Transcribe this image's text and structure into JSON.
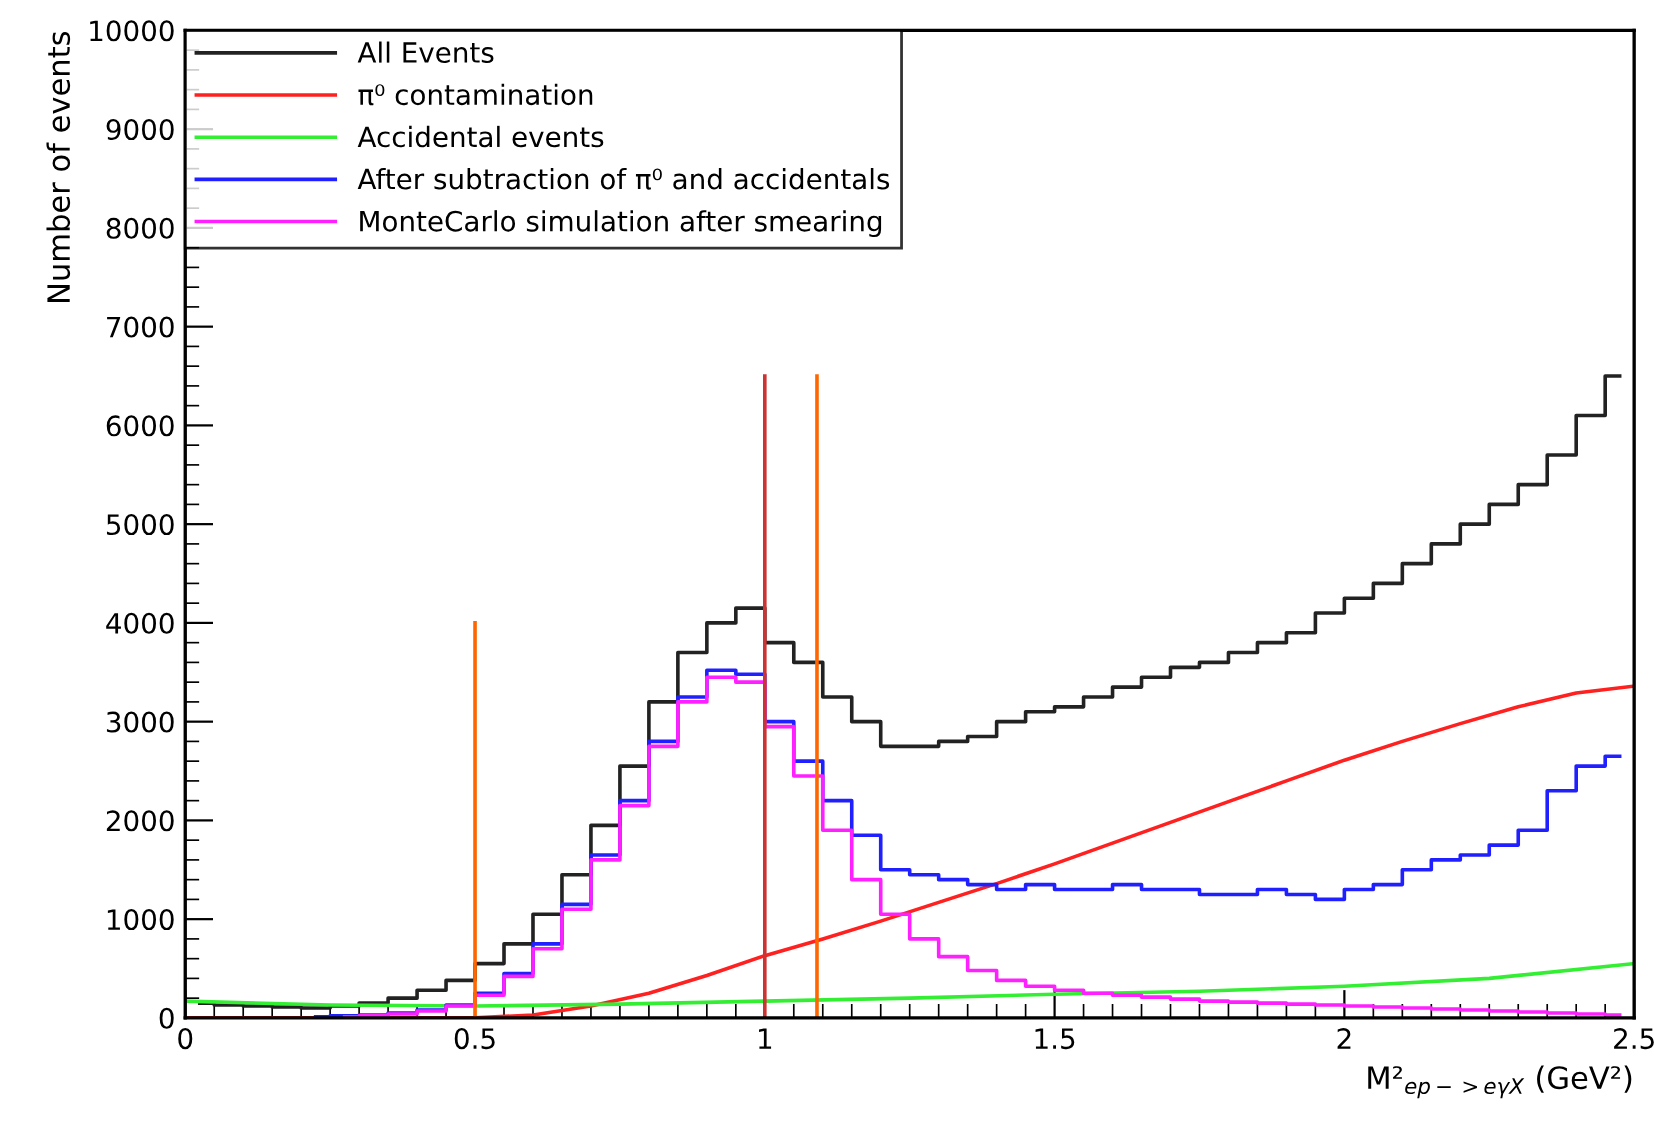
{
  "chart_data": {
    "type": "step",
    "xlabel": "M²$_{ep−>eγX}$ (GeV²)",
    "ylabel": "Number of events",
    "xlim": [
      0,
      2.5
    ],
    "xticks": [
      0,
      0.5,
      1,
      1.5,
      2,
      2.5
    ],
    "ylim": [
      0,
      10000
    ],
    "yticks": [
      0,
      1000,
      2000,
      3000,
      4000,
      5000,
      6000,
      7000,
      8000,
      9000,
      10000
    ],
    "legend": "top left",
    "grid": false,
    "series": [
      {
        "name": "All Events",
        "color": "#222222",
        "x": [
          0.025,
          0.075,
          0.125,
          0.175,
          0.225,
          0.275,
          0.325,
          0.375,
          0.425,
          0.475,
          0.525,
          0.575,
          0.625,
          0.675,
          0.725,
          0.775,
          0.825,
          0.875,
          0.925,
          0.975,
          1.025,
          1.075,
          1.125,
          1.175,
          1.225,
          1.275,
          1.325,
          1.375,
          1.425,
          1.475,
          1.525,
          1.575,
          1.625,
          1.675,
          1.725,
          1.775,
          1.825,
          1.875,
          1.925,
          1.975,
          2.025,
          2.075,
          2.125,
          2.175,
          2.225,
          2.275,
          2.325,
          2.375,
          2.425,
          2.475
        ],
        "values": [
          150,
          130,
          120,
          110,
          100,
          120,
          150,
          200,
          280,
          380,
          550,
          750,
          1050,
          1450,
          1950,
          2550,
          3200,
          3700,
          4000,
          4150,
          3800,
          3600,
          3250,
          3000,
          2750,
          2750,
          2800,
          2850,
          3000,
          3100,
          3150,
          3250,
          3350,
          3450,
          3550,
          3600,
          3700,
          3800,
          3900,
          4100,
          4250,
          4400,
          4600,
          4800,
          5000,
          5200,
          5400,
          5700,
          6100,
          6500
        ]
      },
      {
        "name": "π⁰ contamination",
        "type": "line",
        "color": "#ff2020",
        "x": [
          0,
          0.5,
          0.6,
          0.7,
          0.8,
          0.9,
          1.0,
          1.1,
          1.2,
          1.3,
          1.4,
          1.5,
          1.6,
          1.7,
          1.8,
          1.9,
          2.0,
          2.1,
          2.2,
          2.3,
          2.4,
          2.5
        ],
        "values": [
          0,
          0,
          30,
          120,
          250,
          430,
          630,
          800,
          980,
          1170,
          1360,
          1560,
          1770,
          1980,
          2190,
          2400,
          2610,
          2800,
          2980,
          3150,
          3290,
          3360
        ]
      },
      {
        "name": "Accidental events",
        "type": "line",
        "color": "#33ee33",
        "x": [
          0,
          0.25,
          0.5,
          0.75,
          1.0,
          1.25,
          1.5,
          1.75,
          2.0,
          2.25,
          2.5
        ],
        "values": [
          170,
          130,
          120,
          140,
          170,
          200,
          240,
          270,
          320,
          400,
          550
        ]
      },
      {
        "name": "After subtraction of π⁰ and accidentals",
        "color": "#2020ff",
        "x": [
          0.225,
          0.275,
          0.325,
          0.375,
          0.425,
          0.475,
          0.525,
          0.575,
          0.625,
          0.675,
          0.725,
          0.775,
          0.825,
          0.875,
          0.925,
          0.975,
          1.025,
          1.075,
          1.125,
          1.175,
          1.225,
          1.275,
          1.325,
          1.375,
          1.425,
          1.475,
          1.525,
          1.575,
          1.625,
          1.675,
          1.725,
          1.775,
          1.825,
          1.875,
          1.925,
          1.975,
          2.025,
          2.075,
          2.125,
          2.175,
          2.225,
          2.275,
          2.325,
          2.375,
          2.425,
          2.475
        ],
        "values": [
          10,
          20,
          30,
          50,
          80,
          130,
          250,
          450,
          750,
          1150,
          1650,
          2200,
          2800,
          3250,
          3520,
          3480,
          3000,
          2600,
          2200,
          1850,
          1500,
          1450,
          1400,
          1350,
          1300,
          1350,
          1300,
          1300,
          1350,
          1300,
          1300,
          1250,
          1250,
          1300,
          1250,
          1200,
          1300,
          1350,
          1500,
          1600,
          1650,
          1750,
          1900,
          2300,
          2550,
          2650
        ]
      },
      {
        "name": "MonteCarlo simulation after smearing",
        "color": "#ff20ff",
        "x": [
          0.275,
          0.325,
          0.375,
          0.425,
          0.475,
          0.525,
          0.575,
          0.625,
          0.675,
          0.725,
          0.775,
          0.825,
          0.875,
          0.925,
          0.975,
          1.025,
          1.075,
          1.125,
          1.175,
          1.225,
          1.275,
          1.325,
          1.375,
          1.425,
          1.475,
          1.525,
          1.575,
          1.625,
          1.675,
          1.725,
          1.775,
          1.825,
          1.875,
          1.925,
          1.975,
          2.025,
          2.075,
          2.125,
          2.175,
          2.225,
          2.275,
          2.325,
          2.375,
          2.425,
          2.475
        ],
        "values": [
          10,
          20,
          40,
          70,
          120,
          230,
          420,
          700,
          1100,
          1600,
          2150,
          2750,
          3200,
          3450,
          3400,
          2950,
          2450,
          1900,
          1400,
          1050,
          800,
          620,
          480,
          380,
          320,
          280,
          250,
          230,
          210,
          190,
          170,
          160,
          150,
          140,
          130,
          120,
          110,
          100,
          90,
          80,
          70,
          60,
          50,
          40,
          30
        ]
      },
      {
        "type": "line",
        "color": "#ff6600",
        "x": [
          0.5,
          0.5
        ],
        "values": [
          0,
          4000
        ]
      },
      {
        "type": "line",
        "color": "#cc3333",
        "x": [
          1.0,
          1.0
        ],
        "values": [
          0,
          6500
        ]
      },
      {
        "type": "line",
        "color": "#ff6600",
        "x": [
          1.09,
          1.09
        ],
        "values": [
          0,
          6500
        ]
      }
    ]
  }
}
